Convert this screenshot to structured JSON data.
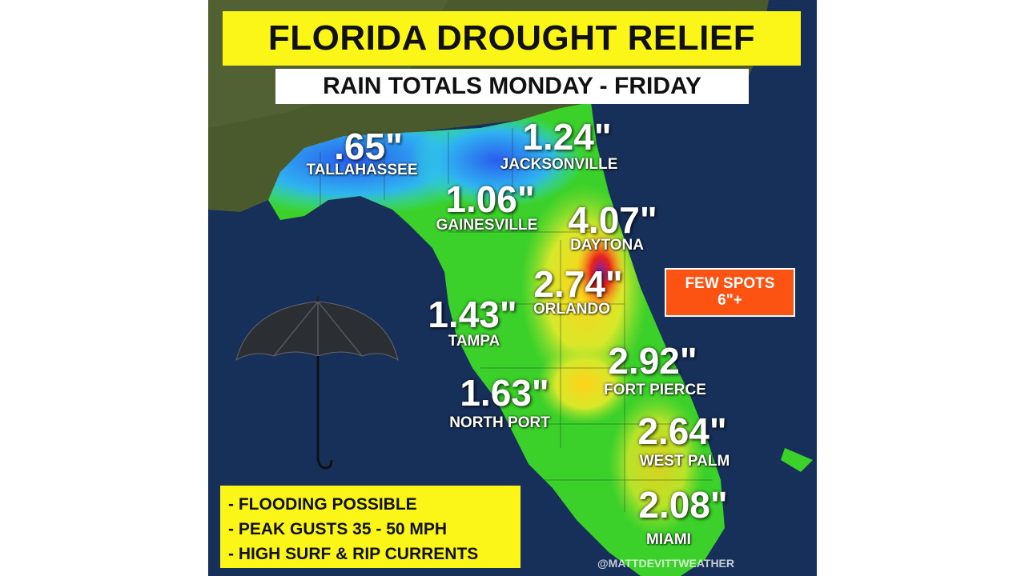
{
  "title": "FLORIDA DROUGHT RELIEF",
  "subtitle": "RAIN TOTALS MONDAY - FRIDAY",
  "cities": [
    {
      "name": "TALLAHASSEE",
      "value": ".65\""
    },
    {
      "name": "JACKSONVILLE",
      "value": "1.24\""
    },
    {
      "name": "GAINESVILLE",
      "value": "1.06\""
    },
    {
      "name": "DAYTONA",
      "value": "4.07\""
    },
    {
      "name": "ORLANDO",
      "value": "2.74\""
    },
    {
      "name": "TAMPA",
      "value": "1.43\""
    },
    {
      "name": "FORT PIERCE",
      "value": "2.92\""
    },
    {
      "name": "NORTH PORT",
      "value": "1.63\""
    },
    {
      "name": "WEST PALM",
      "value": "2.64\""
    },
    {
      "name": "MIAMI",
      "value": "2.08\""
    }
  ],
  "callout": {
    "line1": "FEW SPOTS",
    "line2": "6\"+"
  },
  "bullets": [
    "- FLOODING POSSIBLE",
    "- PEAK GUSTS 35 - 50 MPH",
    "- HIGH SURF & RIP CURRENTS"
  ],
  "credit": "@MATTDEVITTWEATHER",
  "colors": {
    "title_bg": "#fbf617",
    "callout_bg": "#fd5312",
    "ocean": "#17305a",
    "land": "#4a5a2c"
  },
  "icons": [
    "umbrella-icon"
  ]
}
